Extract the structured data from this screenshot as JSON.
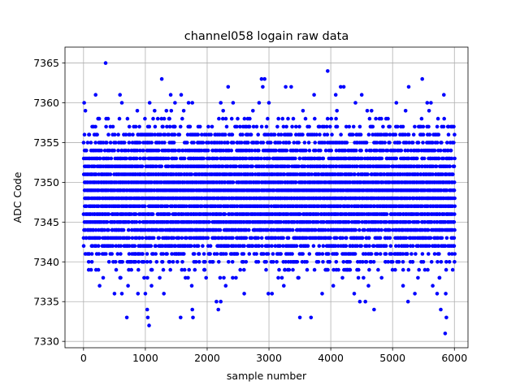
{
  "chart_data": {
    "type": "scatter",
    "title": "channel058 logain raw data",
    "xlabel": "sample number",
    "ylabel": "ADC Code",
    "xlim": [
      -300,
      6220
    ],
    "ylim": [
      7329.2,
      7367
    ],
    "xticks": [
      0,
      1000,
      2000,
      3000,
      4000,
      5000,
      6000
    ],
    "yticks": [
      7330,
      7335,
      7340,
      7345,
      7350,
      7355,
      7360,
      7365
    ],
    "grid": true,
    "marker_color": "#0000ff",
    "sample_count": 6000,
    "dense_band": [
      7338,
      7358
    ],
    "series": [
      {
        "points": [
          [
            357,
            7365
          ],
          [
            3950,
            7364
          ],
          [
            1265,
            7363
          ],
          [
            2880,
            7363
          ],
          [
            2930,
            7363
          ],
          [
            5480,
            7363
          ],
          [
            2340,
            7362
          ],
          [
            2900,
            7362
          ],
          [
            3270,
            7362
          ],
          [
            3360,
            7362
          ],
          [
            4160,
            7362
          ],
          [
            4210,
            7362
          ],
          [
            5260,
            7362
          ],
          [
            195,
            7361
          ],
          [
            590,
            7361
          ],
          [
            1410,
            7361
          ],
          [
            1580,
            7361
          ],
          [
            3730,
            7361
          ],
          [
            4080,
            7361
          ],
          [
            4500,
            7361
          ],
          [
            5830,
            7361
          ],
          [
            10,
            7360
          ],
          [
            620,
            7360
          ],
          [
            1070,
            7360
          ],
          [
            1480,
            7360
          ],
          [
            1700,
            7360
          ],
          [
            1760,
            7360
          ],
          [
            2220,
            7360
          ],
          [
            2420,
            7360
          ],
          [
            2840,
            7360
          ],
          [
            3000,
            7360
          ],
          [
            4400,
            7360
          ],
          [
            5060,
            7360
          ],
          [
            5560,
            7360
          ],
          [
            5620,
            7360
          ],
          [
            30,
            7359
          ],
          [
            870,
            7359
          ],
          [
            1150,
            7359
          ],
          [
            1340,
            7359
          ],
          [
            1420,
            7359
          ],
          [
            1620,
            7359
          ],
          [
            2260,
            7359
          ],
          [
            2740,
            7359
          ],
          [
            3550,
            7359
          ],
          [
            4100,
            7359
          ],
          [
            4590,
            7359
          ],
          [
            4660,
            7359
          ],
          [
            5210,
            7359
          ],
          [
            5590,
            7359
          ],
          [
            600,
            7338
          ],
          [
            980,
            7338
          ],
          [
            1650,
            7338
          ],
          [
            2210,
            7338
          ],
          [
            3150,
            7338
          ],
          [
            3480,
            7338
          ],
          [
            4530,
            7338
          ],
          [
            5410,
            7338
          ],
          [
            5760,
            7338
          ],
          [
            260,
            7337
          ],
          [
            720,
            7337
          ],
          [
            1100,
            7337
          ],
          [
            1750,
            7337
          ],
          [
            2300,
            7337
          ],
          [
            3240,
            7337
          ],
          [
            4040,
            7337
          ],
          [
            4610,
            7337
          ],
          [
            5170,
            7337
          ],
          [
            5650,
            7337
          ],
          [
            500,
            7336
          ],
          [
            620,
            7336
          ],
          [
            880,
            7336
          ],
          [
            1000,
            7336
          ],
          [
            1300,
            7336
          ],
          [
            2600,
            7336
          ],
          [
            2990,
            7336
          ],
          [
            3050,
            7336
          ],
          [
            3860,
            7336
          ],
          [
            4380,
            7336
          ],
          [
            5360,
            7336
          ],
          [
            5720,
            7336
          ],
          [
            5860,
            7336
          ],
          [
            2150,
            7335
          ],
          [
            2220,
            7335
          ],
          [
            4470,
            7335
          ],
          [
            4560,
            7335
          ],
          [
            5250,
            7335
          ],
          [
            1030,
            7334
          ],
          [
            1760,
            7334
          ],
          [
            2180,
            7334
          ],
          [
            4700,
            7334
          ],
          [
            5780,
            7334
          ],
          [
            700,
            7333
          ],
          [
            1040,
            7333
          ],
          [
            1570,
            7333
          ],
          [
            1770,
            7333
          ],
          [
            3500,
            7333
          ],
          [
            3680,
            7333
          ],
          [
            5870,
            7333
          ],
          [
            1060,
            7332
          ],
          [
            5850,
            7331
          ]
        ]
      }
    ]
  }
}
